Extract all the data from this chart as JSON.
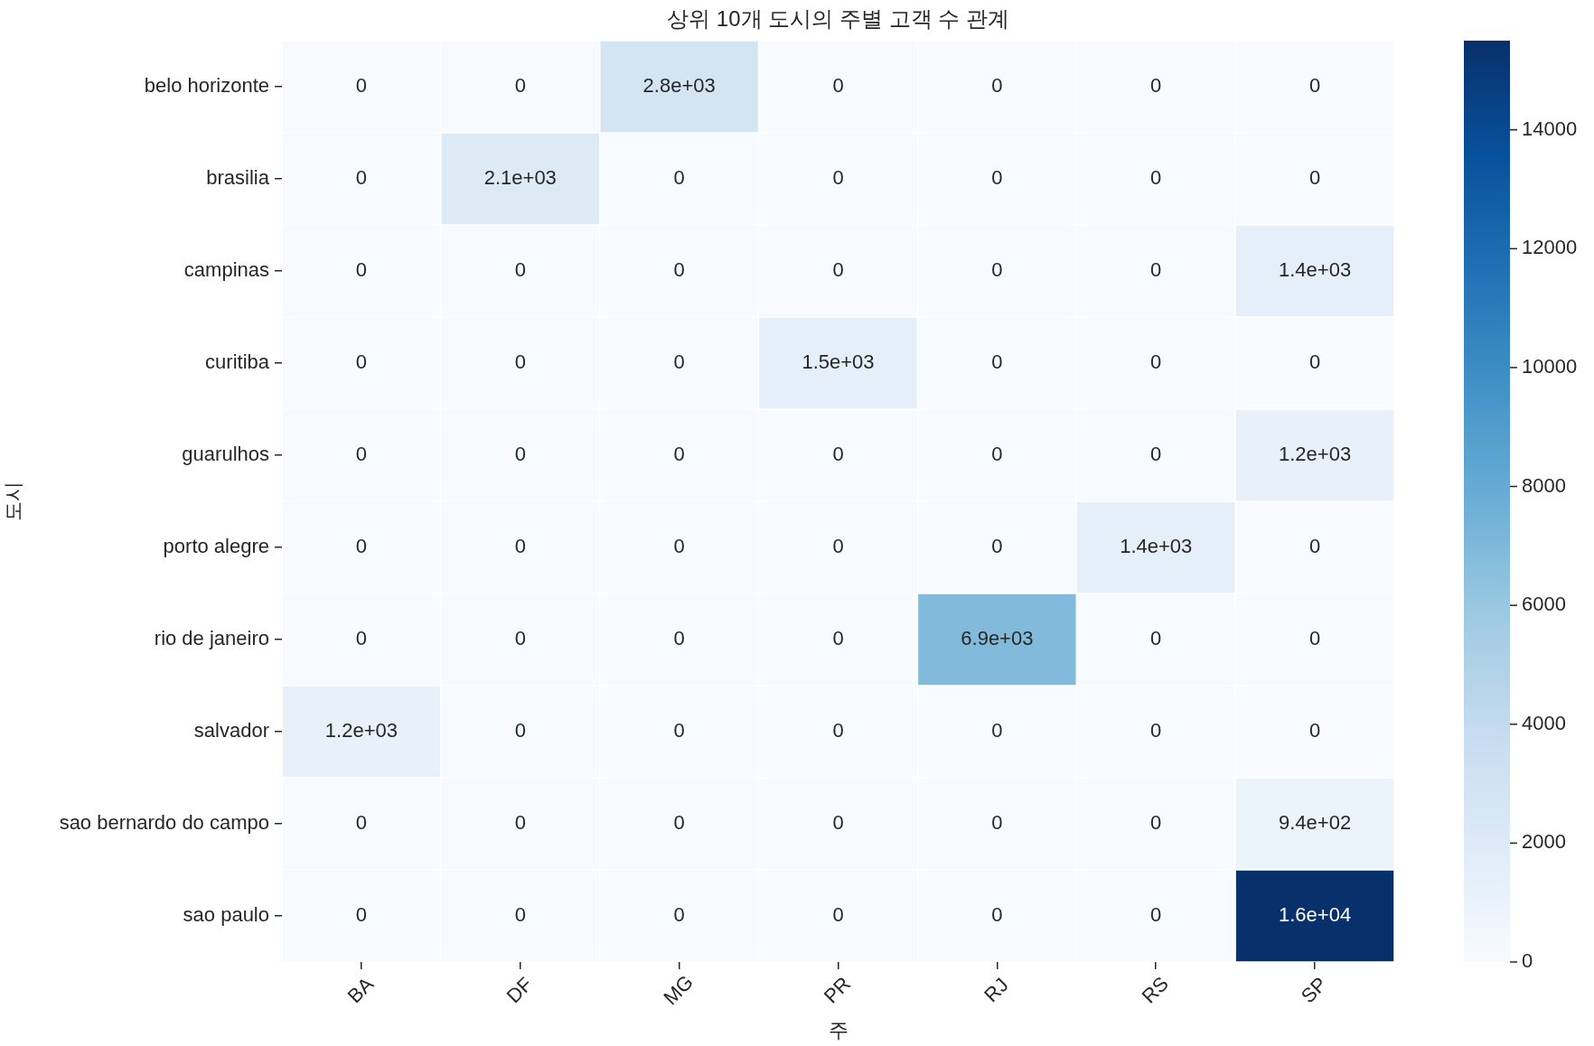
{
  "chart_data": {
    "type": "heatmap",
    "title": "상위 10개 도시의 주별 고객 수 관계",
    "xlabel": "주",
    "ylabel": "도시",
    "categories": [
      "BA",
      "DF",
      "MG",
      "PR",
      "RJ",
      "RS",
      "SP"
    ],
    "y_categories": [
      "belo horizonte",
      "brasilia",
      "campinas",
      "curitiba",
      "guarulhos",
      "porto alegre",
      "rio de janeiro",
      "salvador",
      "sao bernardo do campo",
      "sao paulo"
    ],
    "cells": [
      [
        0,
        0,
        2800,
        0,
        0,
        0,
        0
      ],
      [
        0,
        2100,
        0,
        0,
        0,
        0,
        0
      ],
      [
        0,
        0,
        0,
        0,
        0,
        0,
        1400
      ],
      [
        0,
        0,
        0,
        1500,
        0,
        0,
        0
      ],
      [
        0,
        0,
        0,
        0,
        0,
        0,
        1200
      ],
      [
        0,
        0,
        0,
        0,
        0,
        1400,
        0
      ],
      [
        0,
        0,
        0,
        0,
        6900,
        0,
        0
      ],
      [
        1200,
        0,
        0,
        0,
        0,
        0,
        0
      ],
      [
        0,
        0,
        0,
        0,
        0,
        0,
        940
      ],
      [
        0,
        0,
        0,
        0,
        0,
        0,
        15500
      ]
    ],
    "cell_labels": [
      [
        "0",
        "0",
        "2.8e+03",
        "0",
        "0",
        "0",
        "0"
      ],
      [
        "0",
        "2.1e+03",
        "0",
        "0",
        "0",
        "0",
        "0"
      ],
      [
        "0",
        "0",
        "0",
        "0",
        "0",
        "0",
        "1.4e+03"
      ],
      [
        "0",
        "0",
        "0",
        "1.5e+03",
        "0",
        "0",
        "0"
      ],
      [
        "0",
        "0",
        "0",
        "0",
        "0",
        "0",
        "1.2e+03"
      ],
      [
        "0",
        "0",
        "0",
        "0",
        "0",
        "1.4e+03",
        "0"
      ],
      [
        "0",
        "0",
        "0",
        "0",
        "6.9e+03",
        "0",
        "0"
      ],
      [
        "1.2e+03",
        "0",
        "0",
        "0",
        "0",
        "0",
        "0"
      ],
      [
        "0",
        "0",
        "0",
        "0",
        "0",
        "0",
        "9.4e+02"
      ],
      [
        "0",
        "0",
        "0",
        "0",
        "0",
        "0",
        "1.6e+04"
      ]
    ],
    "clim": [
      0,
      15500
    ],
    "cticks": [
      0,
      2000,
      4000,
      6000,
      8000,
      10000,
      12000,
      14000
    ]
  }
}
